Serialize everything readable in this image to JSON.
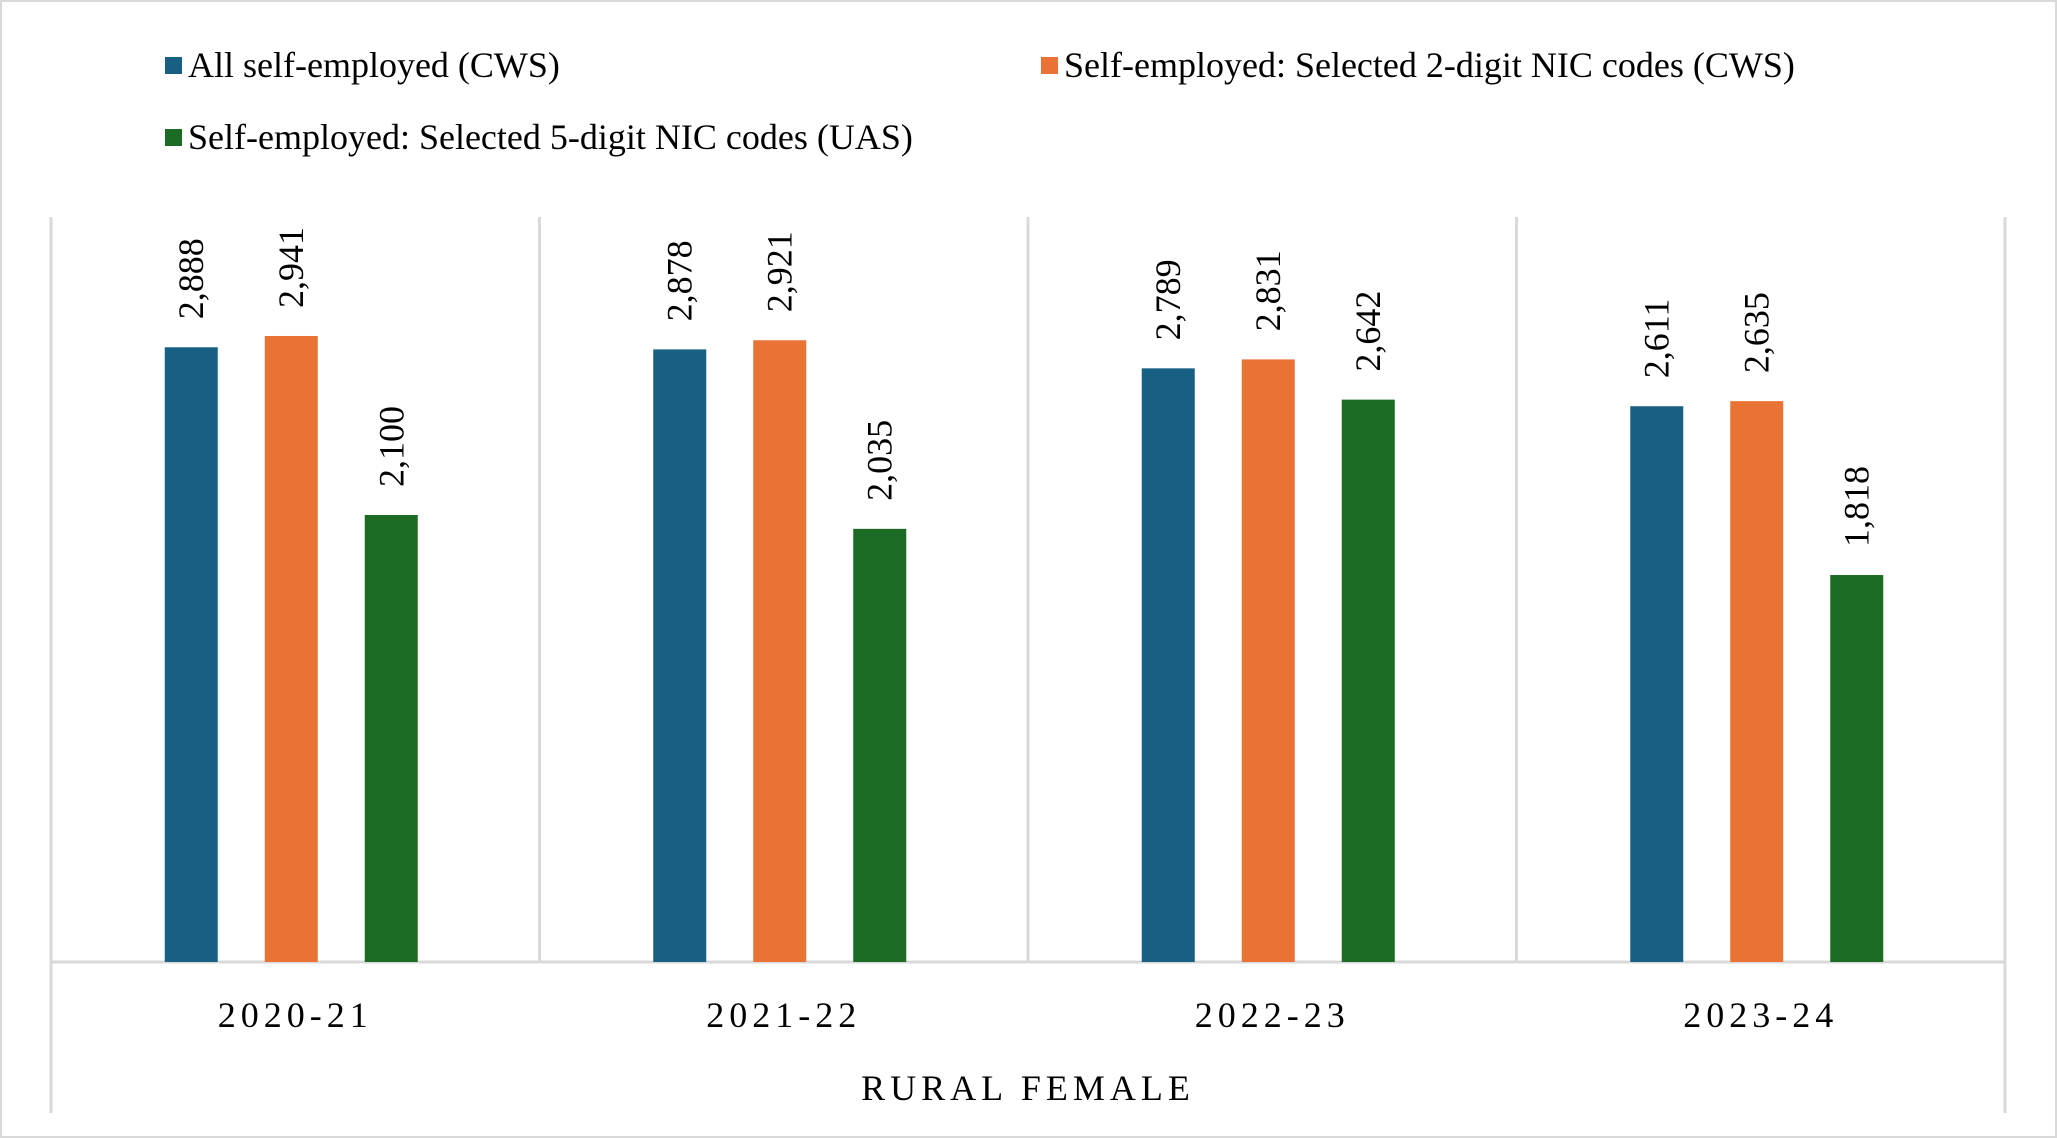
{
  "chart_data": {
    "type": "bar",
    "title": "",
    "xlabel": "RURAL FEMALE",
    "ylabel": "",
    "ylim": [
      0,
      3500
    ],
    "grid": "vertical separators between categories",
    "legend_position": "top",
    "categories": [
      "2020-21",
      "2021-22",
      "2022-23",
      "2023-24"
    ],
    "series": [
      {
        "name": "All self-employed (CWS)",
        "color": "#176083",
        "values": [
          2888,
          2878,
          2789,
          2611
        ],
        "labels": [
          "2,888",
          "2,878",
          "2,789",
          "2,611"
        ]
      },
      {
        "name": "Self-employed: Selected 2-digit NIC codes (CWS)",
        "color": "#E97334",
        "values": [
          2941,
          2921,
          2831,
          2635
        ],
        "labels": [
          "2,941",
          "2,921",
          "2,831",
          "2,635"
        ]
      },
      {
        "name": "Self-employed: Selected 5-digit NIC codes (UAS)",
        "color": "#1C6B24",
        "values": [
          2100,
          2035,
          2642,
          1818
        ],
        "labels": [
          "2,100",
          "2,035",
          "2,642",
          "1,818"
        ]
      }
    ]
  }
}
